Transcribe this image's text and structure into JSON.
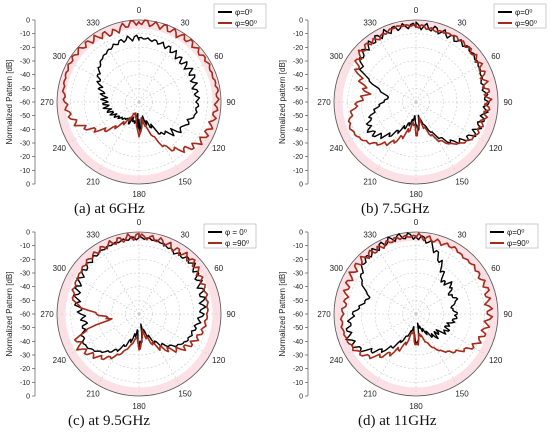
{
  "styles": {
    "phi0_color": "#000000",
    "phi90_color": "#a52a1a",
    "highlight_color": "#f7c8d0",
    "grid_color": "#c8c8c8",
    "axis_color": "#555555"
  },
  "chart_data": [
    {
      "type": "polar-line",
      "caption": "(a) at 6GHz",
      "ylabel": "Normalized Pattern [dB]",
      "r_ticks": [
        "0",
        "-10",
        "-20",
        "-30",
        "-40",
        "-50",
        "-60",
        "-50",
        "-40",
        "-30",
        "-20",
        "-10",
        "0"
      ],
      "angle_labels": [
        "0",
        "30",
        "60",
        "90",
        "120",
        "150",
        "180",
        "210",
        "240",
        "270",
        "300",
        "330"
      ],
      "legend": [
        "φ=0⁰",
        "φ=90⁰"
      ],
      "rlim": [
        -60,
        0
      ],
      "series": [
        {
          "name": "φ=0⁰",
          "angles": [
            0,
            15,
            30,
            45,
            60,
            75,
            90,
            105,
            110,
            115,
            120,
            125,
            130,
            135,
            140,
            145,
            150,
            160,
            165,
            170,
            175,
            178,
            180,
            182,
            185,
            190,
            195,
            200,
            205,
            210,
            220,
            230,
            240,
            250,
            260,
            270,
            280,
            290,
            300,
            310,
            320,
            330,
            340,
            350
          ],
          "values": [
            -13,
            -14,
            -15,
            -17,
            -16,
            -18,
            -17,
            -18,
            -22,
            -20,
            -25,
            -22,
            -28,
            -26,
            -32,
            -30,
            -38,
            -44,
            -46,
            -50,
            -42,
            -38,
            -45,
            -40,
            -52,
            -46,
            -44,
            -48,
            -42,
            -46,
            -44,
            -42,
            -40,
            -38,
            -36,
            -35,
            -34,
            -30,
            -26,
            -22,
            -18,
            -16,
            -14,
            -13
          ]
        },
        {
          "name": "φ=90⁰",
          "angles": [
            0,
            10,
            20,
            30,
            40,
            50,
            60,
            70,
            80,
            90,
            100,
            110,
            120,
            130,
            140,
            150,
            160,
            170,
            175,
            180,
            185,
            190,
            200,
            210,
            220,
            230,
            240,
            250,
            260,
            270,
            280,
            290,
            300,
            310,
            320,
            330,
            340,
            350
          ],
          "values": [
            -1,
            -2,
            -2,
            -3,
            -2,
            -3,
            -2,
            -3,
            -2,
            -3,
            -4,
            -5,
            -6,
            -9,
            -14,
            -22,
            -36,
            -47,
            -40,
            -35,
            -42,
            -48,
            -52,
            -45,
            -38,
            -28,
            -20,
            -12,
            -8,
            -6,
            -4,
            -3,
            -2,
            -2,
            -3,
            -4,
            -6,
            -3
          ]
        }
      ]
    },
    {
      "type": "polar-line",
      "caption": "(b) 7.5GHz",
      "ylabel": "Normalized pattern [dB]",
      "r_ticks": [
        "0",
        "-10",
        "-20",
        "-30",
        "-40",
        "-50",
        "-60",
        "-50",
        "-40",
        "-30",
        "-20",
        "-10",
        "0"
      ],
      "angle_labels": [
        "0",
        "30",
        "60",
        "90",
        "120",
        "150",
        "180",
        "210",
        "240",
        "270",
        "300",
        "330"
      ],
      "legend": [
        "φ=0⁰",
        "φ=90⁰"
      ],
      "rlim": [
        -60,
        0
      ],
      "series": [
        {
          "name": "φ=0⁰",
          "angles": [
            0,
            15,
            30,
            45,
            60,
            75,
            90,
            105,
            120,
            130,
            140,
            150,
            160,
            170,
            175,
            180,
            185,
            190,
            200,
            210,
            220,
            230,
            240,
            250,
            260,
            270,
            280,
            290,
            300,
            310,
            320,
            330,
            345
          ],
          "values": [
            -4,
            -5,
            -6,
            -5,
            -7,
            -10,
            -8,
            -10,
            -12,
            -16,
            -22,
            -32,
            -42,
            -50,
            -38,
            -44,
            -50,
            -46,
            -42,
            -36,
            -28,
            -22,
            -20,
            -24,
            -30,
            -36,
            -40,
            -30,
            -14,
            -8,
            -6,
            -5,
            -4
          ]
        },
        {
          "name": "φ=90⁰",
          "angles": [
            0,
            15,
            30,
            45,
            60,
            75,
            90,
            105,
            120,
            130,
            140,
            150,
            160,
            170,
            175,
            180,
            185,
            190,
            200,
            210,
            220,
            230,
            240,
            250,
            260,
            270,
            280,
            290,
            300,
            310,
            320,
            330,
            345
          ],
          "values": [
            -4,
            -6,
            -4,
            -5,
            -6,
            -8,
            -7,
            -9,
            -10,
            -14,
            -20,
            -28,
            -38,
            -48,
            -40,
            -36,
            -46,
            -42,
            -34,
            -26,
            -20,
            -14,
            -10,
            -8,
            -12,
            -18,
            -24,
            -18,
            -10,
            -6,
            -5,
            -6,
            -3
          ]
        }
      ]
    },
    {
      "type": "polar-line",
      "caption": "(c) at 9.5GHz",
      "ylabel": "Normalized Pattern [dB]",
      "r_ticks": [
        "0",
        "-10",
        "-20",
        "-30",
        "-40",
        "-50",
        "-60",
        "-50",
        "-40",
        "-30",
        "-20",
        "-10",
        "0"
      ],
      "angle_labels": [
        "0",
        "30",
        "60",
        "90",
        "120",
        "150",
        "180",
        "210",
        "240",
        "270",
        "300",
        "330"
      ],
      "legend": [
        "φ = 0⁰",
        "φ =90⁰"
      ],
      "rlim": [
        -60,
        0
      ],
      "series": [
        {
          "name": "φ = 0⁰",
          "angles": [
            0,
            15,
            30,
            45,
            60,
            75,
            90,
            105,
            120,
            130,
            140,
            150,
            160,
            170,
            175,
            180,
            185,
            190,
            200,
            210,
            220,
            230,
            240,
            250,
            260,
            270,
            280,
            290,
            300,
            315,
            330,
            345
          ],
          "values": [
            -4,
            -5,
            -8,
            -6,
            -10,
            -12,
            -14,
            -18,
            -20,
            -24,
            -30,
            -36,
            -44,
            -50,
            -40,
            -36,
            -48,
            -44,
            -38,
            -30,
            -24,
            -18,
            -14,
            -16,
            -20,
            -18,
            -14,
            -12,
            -10,
            -8,
            -6,
            -5
          ]
        },
        {
          "name": "φ =90⁰",
          "angles": [
            0,
            15,
            30,
            45,
            60,
            75,
            90,
            105,
            120,
            130,
            140,
            150,
            160,
            170,
            175,
            180,
            185,
            190,
            200,
            210,
            220,
            230,
            240,
            250,
            260,
            270,
            280,
            290,
            300,
            315,
            330,
            345
          ],
          "values": [
            -3,
            -4,
            -6,
            -5,
            -8,
            -9,
            -10,
            -12,
            -16,
            -20,
            -26,
            -32,
            -40,
            -48,
            -38,
            -34,
            -44,
            -40,
            -32,
            -24,
            -18,
            -14,
            -10,
            -12,
            -40,
            -30,
            -12,
            -9,
            -8,
            -6,
            -5,
            -4
          ]
        }
      ]
    },
    {
      "type": "polar-line",
      "caption": "(d) at 11GHz",
      "ylabel": "Normalized Pattern [dB]",
      "r_ticks": [
        "0",
        "-10",
        "-20",
        "-30",
        "-40",
        "-50",
        "-60",
        "-50",
        "-40",
        "-30",
        "-20",
        "-10",
        "0"
      ],
      "angle_labels": [
        "0",
        "30",
        "60",
        "90",
        "120",
        "150",
        "180",
        "210",
        "240",
        "270",
        "300",
        "330"
      ],
      "legend": [
        "φ=0⁰",
        "φ=90⁰"
      ],
      "rlim": [
        -60,
        0
      ],
      "series": [
        {
          "name": "φ=0⁰",
          "angles": [
            0,
            10,
            20,
            30,
            40,
            50,
            60,
            70,
            80,
            90,
            100,
            110,
            120,
            130,
            140,
            150,
            160,
            170,
            175,
            180,
            185,
            190,
            200,
            210,
            220,
            230,
            240,
            250,
            260,
            270,
            280,
            290,
            300,
            315,
            330,
            345
          ],
          "values": [
            -3,
            -6,
            -14,
            -22,
            -30,
            -26,
            -32,
            -28,
            -34,
            -30,
            -32,
            -36,
            -34,
            -40,
            -38,
            -44,
            -48,
            -52,
            -40,
            -38,
            -46,
            -50,
            -44,
            -36,
            -26,
            -18,
            -10,
            -8,
            -10,
            -14,
            -20,
            -24,
            -14,
            -6,
            -4,
            -2
          ]
        },
        {
          "name": "φ=90⁰",
          "angles": [
            0,
            10,
            20,
            30,
            40,
            50,
            60,
            70,
            80,
            90,
            100,
            110,
            120,
            130,
            140,
            150,
            160,
            170,
            175,
            180,
            185,
            190,
            200,
            210,
            220,
            230,
            240,
            250,
            260,
            270,
            280,
            290,
            300,
            315,
            330,
            345
          ],
          "values": [
            -3,
            -4,
            -5,
            -4,
            -6,
            -5,
            -6,
            -5,
            -7,
            -6,
            -8,
            -9,
            -12,
            -18,
            -24,
            -30,
            -38,
            -46,
            -40,
            -36,
            -44,
            -48,
            -36,
            -28,
            -20,
            -12,
            -8,
            -6,
            -5,
            -6,
            -8,
            -6,
            -5,
            -4,
            -5,
            -3
          ]
        }
      ]
    }
  ]
}
